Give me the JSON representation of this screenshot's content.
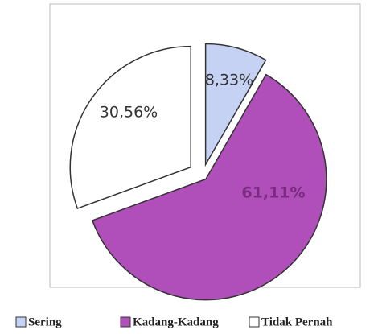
{
  "chart_data": {
    "type": "pie",
    "categories": [
      "Sering",
      "Kadang-Kadang",
      "Tidak Pernah"
    ],
    "values": [
      8.33,
      61.11,
      30.56
    ],
    "value_labels": [
      "8,33%",
      "61,11%",
      "30,56%"
    ],
    "colors": [
      "#c6d2f4",
      "#b04fb9",
      "#ffffff"
    ],
    "label_colors": [
      "#333333",
      "#7a2a80",
      "#333333"
    ]
  }
}
